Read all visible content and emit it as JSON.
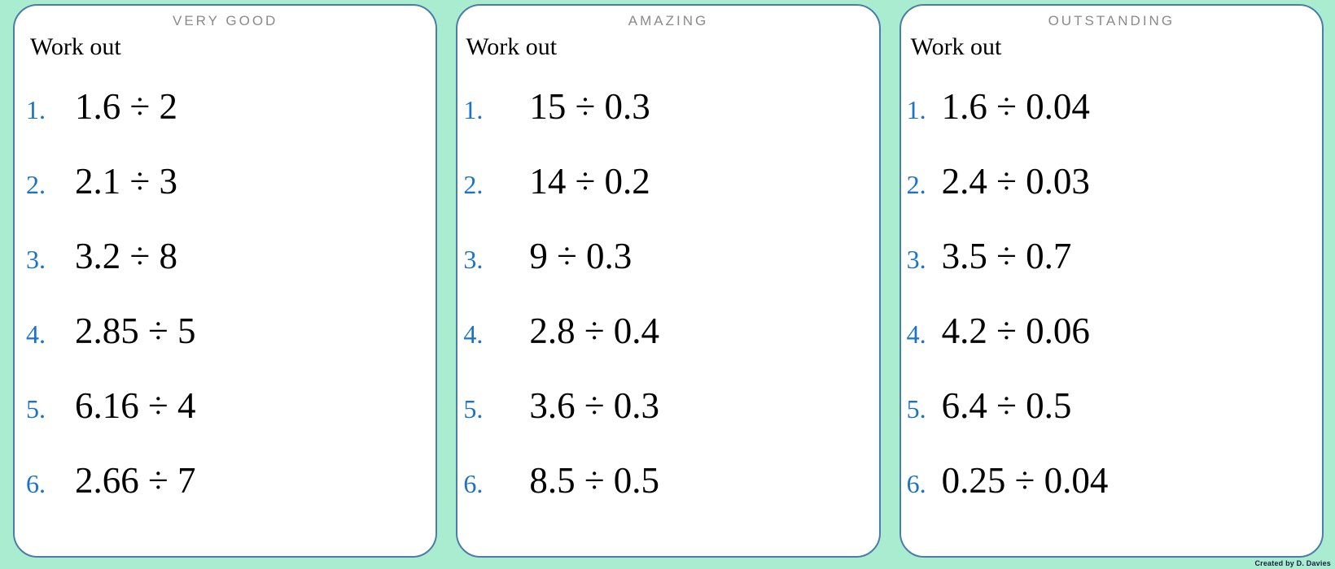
{
  "page": {
    "credit": "Created by D. Davies"
  },
  "colors": {
    "background": "#a9ecd0",
    "card_border": "#4a7ea8",
    "number_blue": "#1a73c8",
    "title_gray": "#8a8a8a",
    "text_black": "#000000"
  },
  "cards": [
    {
      "title": "VERY GOOD",
      "heading": "Work out",
      "items": [
        {
          "num": "1.",
          "expr": "1.6 ÷ 2"
        },
        {
          "num": "2.",
          "expr": "2.1 ÷ 3"
        },
        {
          "num": "3.",
          "expr": "3.2 ÷ 8"
        },
        {
          "num": "4.",
          "expr": "2.85 ÷ 5"
        },
        {
          "num": "5.",
          "expr": "6.16 ÷ 4"
        },
        {
          "num": "6.",
          "expr": "2.66 ÷ 7"
        }
      ]
    },
    {
      "title": "AMAZING",
      "heading": "Work out",
      "items": [
        {
          "num": "1.",
          "expr": "15 ÷ 0.3"
        },
        {
          "num": "2.",
          "expr": "14 ÷ 0.2"
        },
        {
          "num": "3.",
          "expr": "9 ÷ 0.3"
        },
        {
          "num": "4.",
          "expr": "2.8 ÷ 0.4"
        },
        {
          "num": "5.",
          "expr": "3.6 ÷ 0.3"
        },
        {
          "num": "6.",
          "expr": "8.5 ÷ 0.5"
        }
      ]
    },
    {
      "title": "OUTSTANDING",
      "heading": "Work out",
      "items": [
        {
          "num": "1.",
          "expr": "1.6 ÷ 0.04"
        },
        {
          "num": "2.",
          "expr": "2.4 ÷ 0.03"
        },
        {
          "num": "3.",
          "expr": "3.5 ÷ 0.7"
        },
        {
          "num": "4.",
          "expr": "4.2 ÷ 0.06"
        },
        {
          "num": "5.",
          "expr": "6.4 ÷ 0.5"
        },
        {
          "num": "6.",
          "expr": "0.25 ÷ 0.04"
        }
      ]
    }
  ]
}
